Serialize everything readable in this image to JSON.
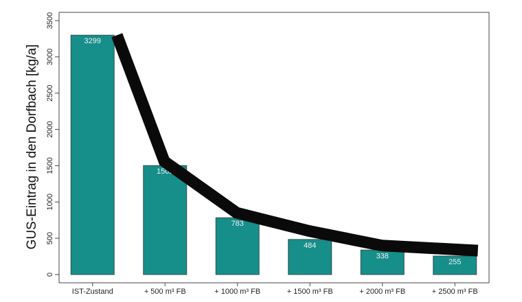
{
  "chart_data": {
    "type": "bar",
    "title": "",
    "xlabel": "",
    "ylabel": "GUS-Eintrag in den Dorfbach [kg/a]",
    "categories": [
      "IST-Zustand",
      "+ 500 m³ FB",
      "+ 1000 m³ FB",
      "+ 1500 m³ FB",
      "+ 2000 m³ FB",
      "+ 2500 m³ FB"
    ],
    "values": [
      3299,
      1502,
      783,
      484,
      338,
      255
    ],
    "value_labels": [
      "3299",
      "1502",
      "783",
      "484",
      "338",
      "255"
    ],
    "ylim": [
      0,
      3500
    ],
    "yticks": [
      0,
      500,
      1000,
      1500,
      2000,
      2500,
      3000,
      3500
    ],
    "ytick_labels": [
      "0",
      "500",
      "1000",
      "1500",
      "2000",
      "2500",
      "3000",
      "3500"
    ],
    "trend_line": [
      3299,
      1560,
      850,
      600,
      400,
      330
    ],
    "grid": false,
    "legend": "none",
    "colors": {
      "bar_fill": "#168e8a",
      "bar_stroke": "#35504e",
      "trend_line": "#0a0a0a",
      "axis": "#444444"
    }
  }
}
